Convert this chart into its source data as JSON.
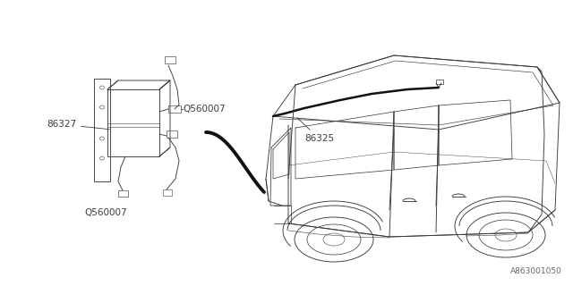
{
  "background_color": "#ffffff",
  "line_color": "#3a3a3a",
  "label_color": "#3a3a3a",
  "fig_width": 6.4,
  "fig_height": 3.2,
  "dpi": 100,
  "footer_text": "A863001050",
  "lw": 0.65
}
